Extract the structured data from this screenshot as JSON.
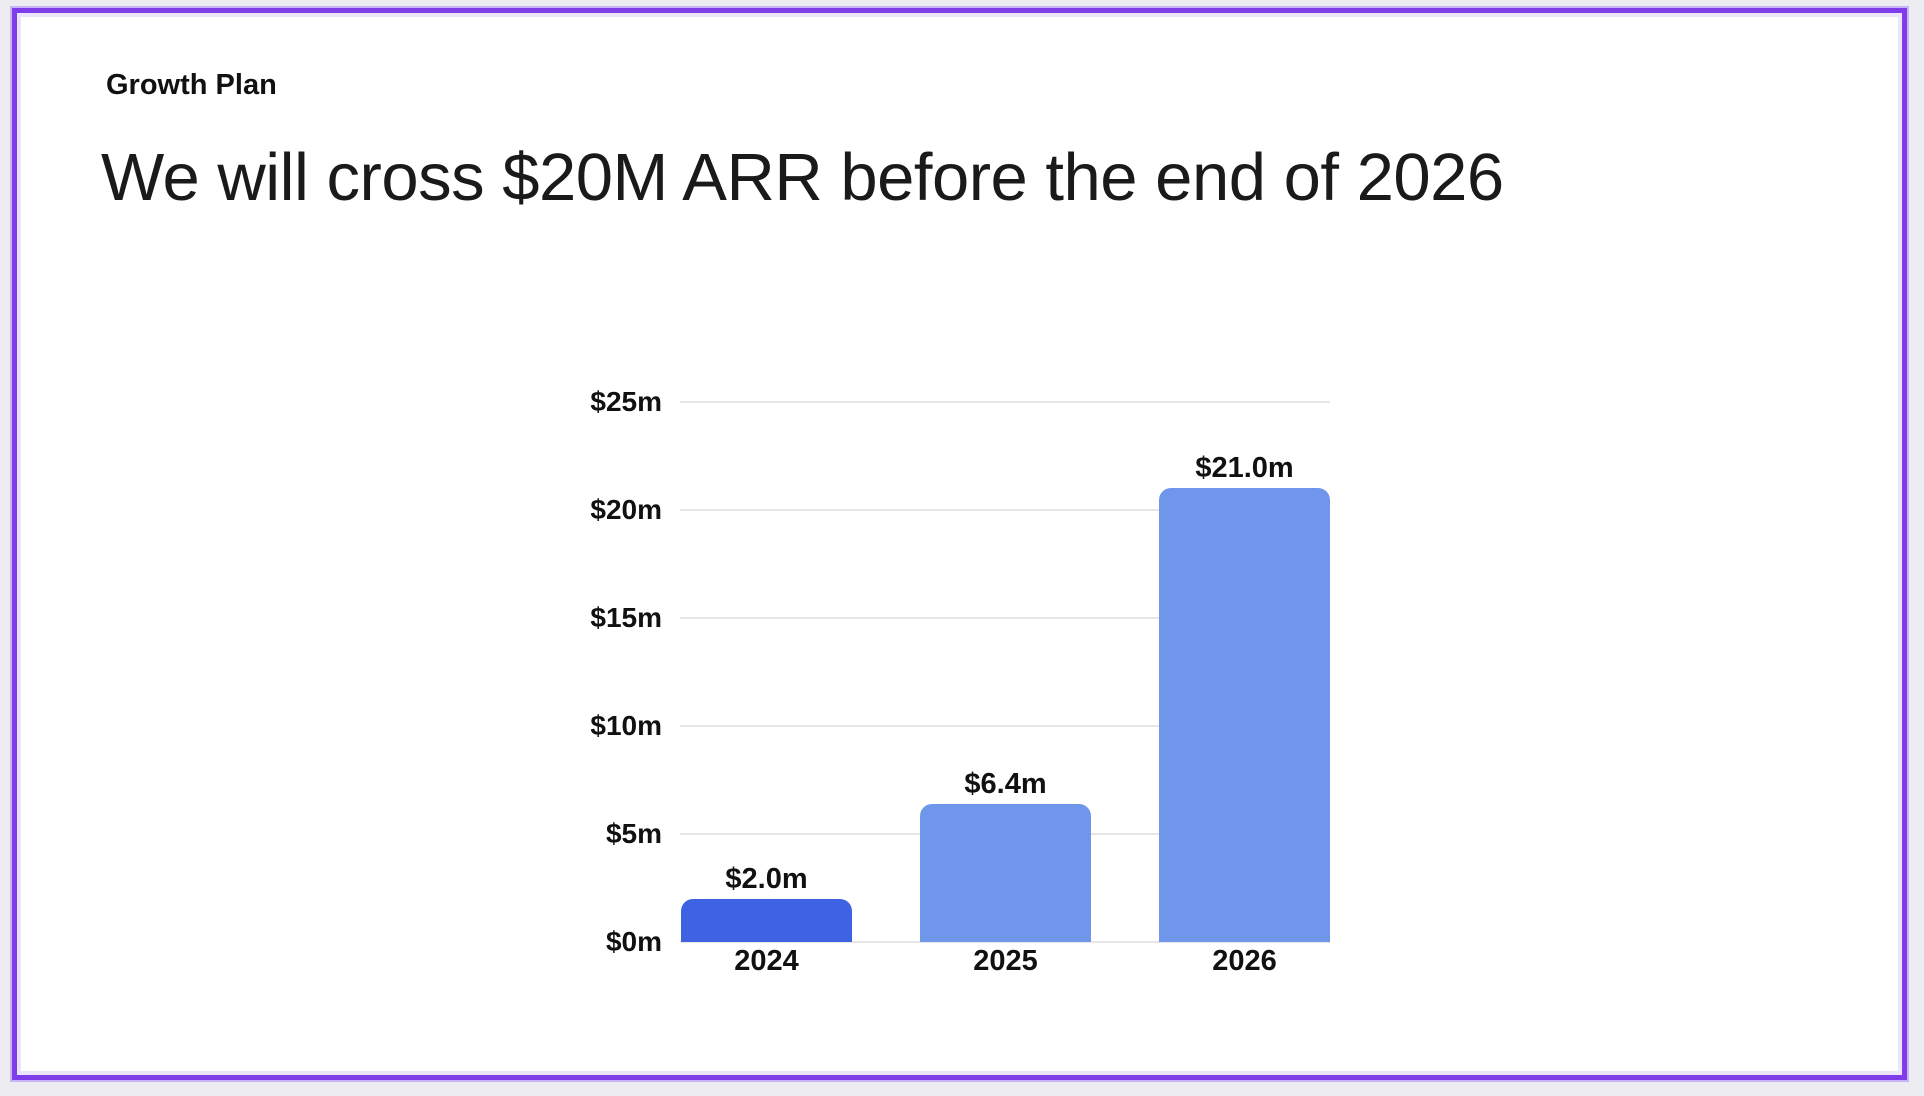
{
  "slide": {
    "kicker": "Growth Plan",
    "title": "We will cross $20M ARR before the end of 2026"
  },
  "chart_data": {
    "type": "bar",
    "title": "",
    "xlabel": "",
    "ylabel": "",
    "categories": [
      "2024",
      "2025",
      "2026"
    ],
    "values": [
      2.0,
      6.4,
      21.0
    ],
    "value_labels": [
      "$2.0m",
      "$6.4m",
      "$21.0m"
    ],
    "y_ticks": [
      "$0m",
      "$5m",
      "$10m",
      "$15m",
      "$20m",
      "$25m"
    ],
    "y_tick_values": [
      0,
      5,
      10,
      15,
      20,
      25
    ],
    "ylim": [
      0,
      25
    ],
    "grid": true,
    "legend": false,
    "bar_colors": [
      "#3D63E3",
      "#7096EB",
      "#7096EB"
    ]
  },
  "colors": {
    "bar_primary": "#3D63E3",
    "bar_secondary": "#7096EB",
    "selection_border": "#7E3DE9",
    "canvas_background": "#ECECF1",
    "gridline": "#E6E6E6",
    "text": "#111111"
  }
}
